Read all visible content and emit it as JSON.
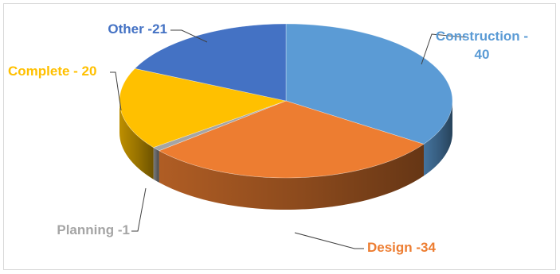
{
  "chart_data": {
    "type": "pie",
    "style": "3d-pie",
    "title": "",
    "legend": "none",
    "slices": [
      {
        "category": "Construction",
        "value": 40,
        "label_lines": [
          "Construction -",
          "40"
        ],
        "color": "#5b9bd5"
      },
      {
        "category": "Design",
        "value": 34,
        "label_lines": [
          "Design -34"
        ],
        "color": "#ed7d31"
      },
      {
        "category": "Planning",
        "value": 1,
        "label_lines": [
          "Planning -1"
        ],
        "color": "#a5a5a5"
      },
      {
        "category": "Complete",
        "value": 20,
        "label_lines": [
          "Complete - 20"
        ],
        "color": "#ffc000"
      },
      {
        "category": "Other",
        "value": 21,
        "label_lines": [
          "Other -21"
        ],
        "color": "#4472c4"
      }
    ]
  }
}
